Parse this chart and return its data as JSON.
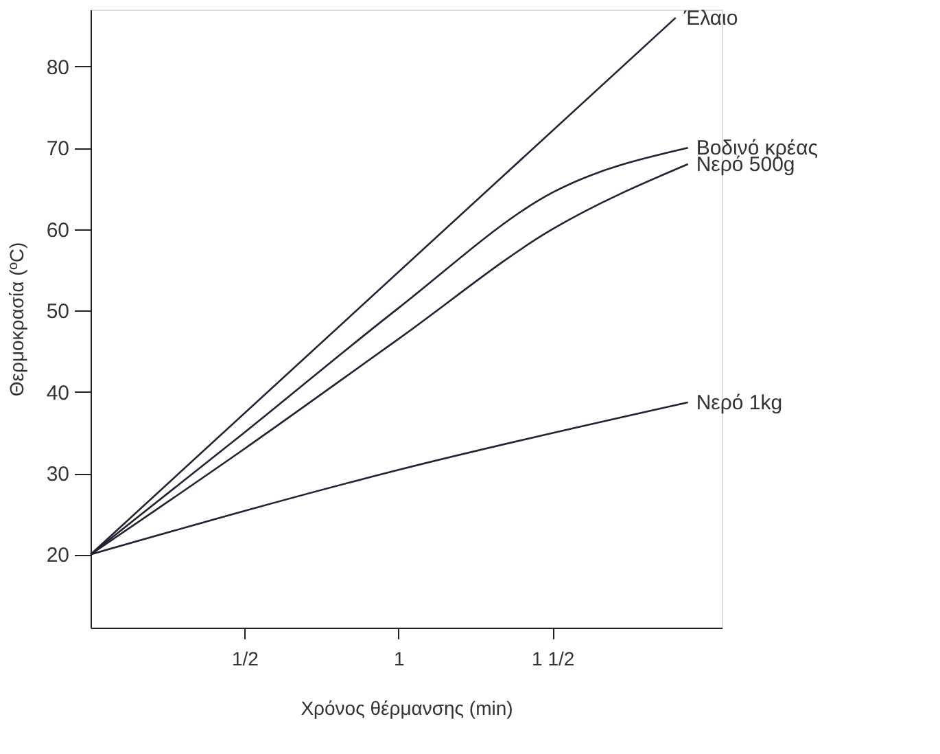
{
  "chart_data": {
    "type": "line",
    "xlabel": "Χρόνος θέρμανσης (min)",
    "ylabel": "Θερμοκρασία (ºC)",
    "xlim": [
      0,
      2.05
    ],
    "ylim": [
      11,
      87
    ],
    "xticks": [
      {
        "value": 0.5,
        "label": "1/2"
      },
      {
        "value": 1,
        "label": "1"
      },
      {
        "value": 1.5,
        "label": "1 1/2"
      }
    ],
    "yticks": [
      20,
      30,
      40,
      50,
      60,
      70,
      80
    ],
    "grid": false,
    "legend": false,
    "marker": "none",
    "line_style": "solid",
    "series": [
      {
        "name": "Έλαιο",
        "color": "#222233",
        "x": [
          0,
          1.9
        ],
        "values": [
          20,
          86
        ]
      },
      {
        "name": "Βοδινό κρέας",
        "color": "#222233",
        "x": [
          0,
          0.5,
          1,
          1.5,
          1.94
        ],
        "values": [
          20,
          35,
          50.3,
          64.5,
          70
        ]
      },
      {
        "name": "Νερό 500g",
        "color": "#222233",
        "x": [
          0,
          0.5,
          1,
          1.5,
          1.94
        ],
        "values": [
          20,
          33,
          46.5,
          60,
          68
        ]
      },
      {
        "name": "Νερό 1kg",
        "color": "#222233",
        "x": [
          0,
          1,
          1.94
        ],
        "values": [
          20,
          30.4,
          38.7
        ]
      }
    ]
  }
}
